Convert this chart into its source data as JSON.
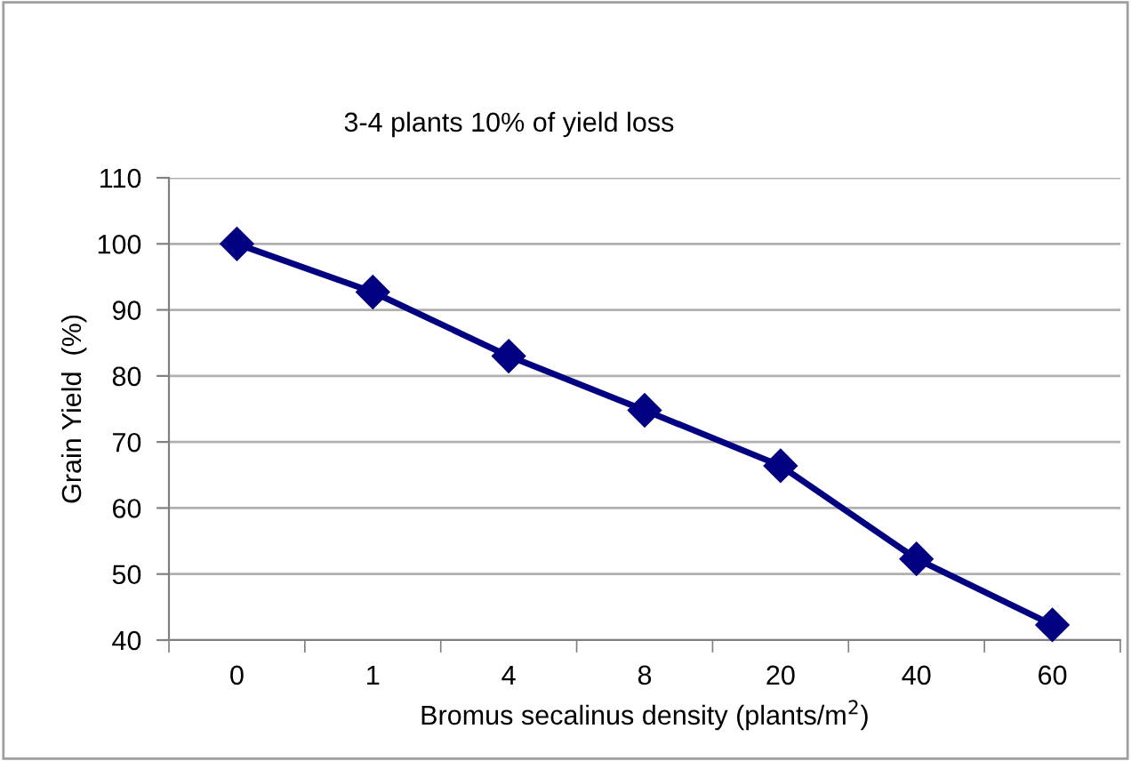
{
  "chart_data": {
    "type": "line",
    "categories": [
      "0",
      "1",
      "4",
      "8",
      "20",
      "40",
      "60"
    ],
    "series": [
      {
        "color": "#000080",
        "values": [
          100,
          92.7,
          83.0,
          74.8,
          66.4,
          52.3,
          42.3
        ]
      }
    ],
    "xlabel": "Bromus secalinus density (plants/m$^{2}$)",
    "ylabel": "Grain Yield  (%)",
    "annotations": [
      "3-4 plants 10% of yield loss"
    ],
    "ylim": [
      40,
      110
    ],
    "yticks": [
      40,
      50,
      60,
      70,
      80,
      90,
      100,
      110
    ],
    "grid": "y",
    "marker": "diamond",
    "line_style": "solid"
  }
}
